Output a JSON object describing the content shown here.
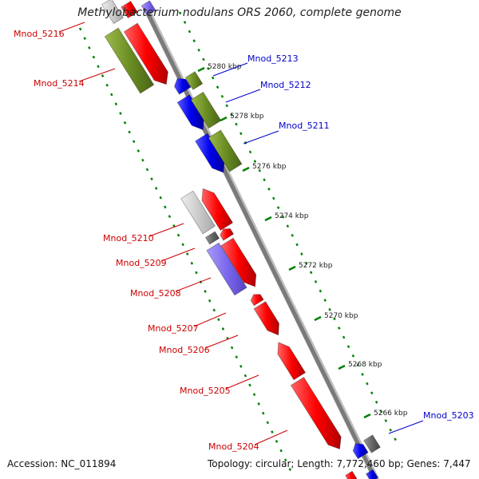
{
  "title": "Methylobacterium nodulans ORS 2060, complete genome",
  "accession": "Accession: NC_011894",
  "summary": "Topology: circular; Length: 7,772,460 bp; Genes: 7,447",
  "colors": {
    "red": "#ff0000",
    "blue": "#0000ee",
    "olive": "#6b8e23",
    "light_gray": "#cccccc",
    "dark_gray": "#666666",
    "lavender": "#7b68ee",
    "label_red": "#cc0000",
    "label_blue": "#0000cc",
    "dotted_green": "#008000"
  },
  "scale_ticks": [
    {
      "label": "5280 kbp"
    },
    {
      "label": "5278 kbp"
    },
    {
      "label": "5276 kbp"
    },
    {
      "label": "5274 kbp"
    },
    {
      "label": "5272 kbp"
    },
    {
      "label": "5270 kbp"
    },
    {
      "label": "5268 kbp"
    },
    {
      "label": "5266 kbp"
    }
  ],
  "gene_labels": [
    {
      "text": "Mnod_5216",
      "color": "#cc0000"
    },
    {
      "text": "Mnod_5214",
      "color": "#cc0000"
    },
    {
      "text": "Mnod_5213",
      "color": "#0000cc"
    },
    {
      "text": "Mnod_5212",
      "color": "#0000cc"
    },
    {
      "text": "Mnod_5211",
      "color": "#0000cc"
    },
    {
      "text": "Mnod_5210",
      "color": "#cc0000"
    },
    {
      "text": "Mnod_5209",
      "color": "#cc0000"
    },
    {
      "text": "Mnod_5208",
      "color": "#cc0000"
    },
    {
      "text": "Mnod_5207",
      "color": "#cc0000"
    },
    {
      "text": "Mnod_5206",
      "color": "#cc0000"
    },
    {
      "text": "Mnod_5205",
      "color": "#cc0000"
    },
    {
      "text": "Mnod_5204",
      "color": "#cc0000"
    },
    {
      "text": "Mnod_5203",
      "color": "#0000cc"
    }
  ]
}
